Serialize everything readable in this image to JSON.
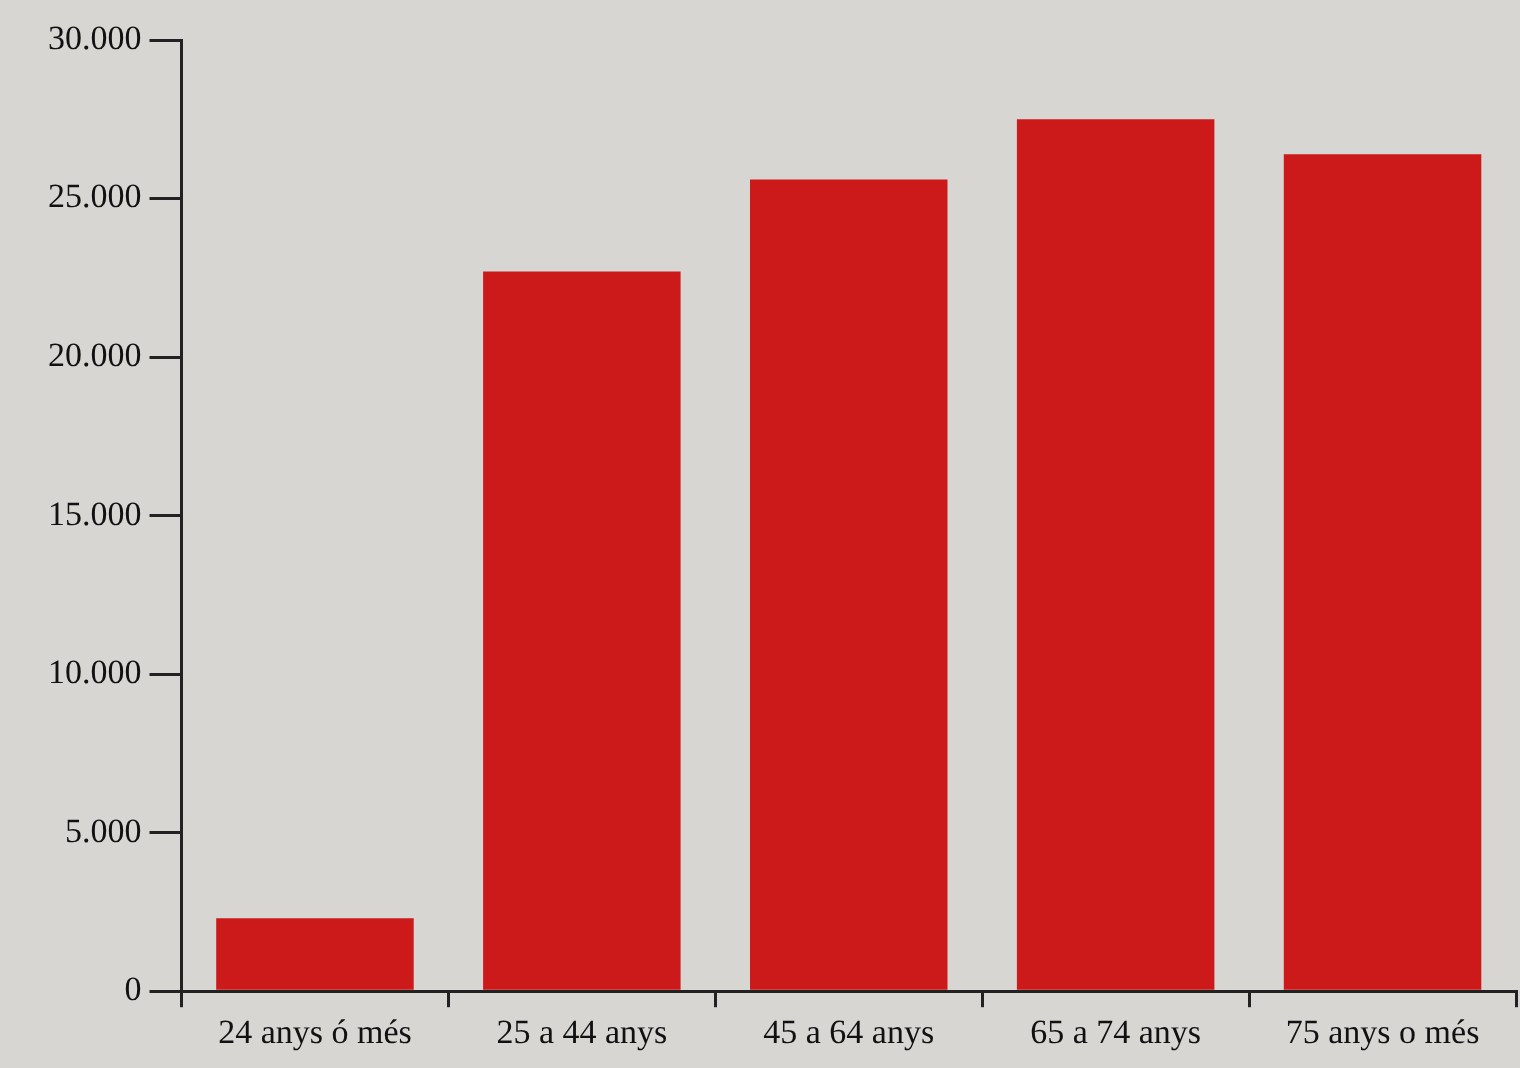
{
  "chart_data": {
    "type": "bar",
    "categories": [
      "24 anys ó més",
      "25 a 44 anys",
      "45 a 64 anys",
      "65 a 74 anys",
      "75 anys o més"
    ],
    "values": [
      2300,
      22700,
      25600,
      27500,
      26400
    ],
    "color": "#cc1a1a",
    "ylim": [
      0,
      30000
    ],
    "yticks": [
      {
        "value": 0,
        "label": "0"
      },
      {
        "value": 5000,
        "label": "5.000"
      },
      {
        "value": 10000,
        "label": "10.000"
      },
      {
        "value": 15000,
        "label": "15.000"
      },
      {
        "value": 20000,
        "label": "20.000"
      },
      {
        "value": 25000,
        "label": "25.000"
      },
      {
        "value": 30000,
        "label": "30.000"
      }
    ],
    "grid": false,
    "legend": false
  }
}
